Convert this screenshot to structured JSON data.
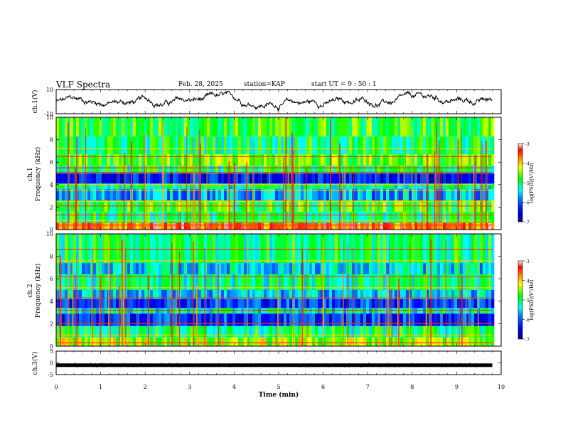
{
  "header": {
    "title": "VLF Spectra",
    "date": "Feb. 28, 2025",
    "station": "station=KAP",
    "start": "start  UT =   9 : 50 : 1"
  },
  "chart_data": [
    {
      "type": "line",
      "panel": "ch1-waveform",
      "ylabel": "ch.1(V)",
      "ylim": [
        -10,
        10
      ],
      "yticks": [
        "10",
        "-10"
      ],
      "xlim": [
        0,
        10
      ],
      "description_values": "noisy waveform oscillating roughly between -8 and +8 V over 0-9.8 min"
    },
    {
      "type": "heatmap",
      "panel": "ch1-spectrogram",
      "channel_label": "ch.1",
      "ylabel": "Frequency (kHz)",
      "ylim": [
        0,
        10
      ],
      "yticks": [
        "0",
        "2",
        "4",
        "6",
        "8",
        "10"
      ],
      "xlim": [
        0,
        10
      ],
      "data_end_min": 9.8,
      "colorbar": {
        "label": "log(PSD)(V²/Hz)",
        "range": [
          -7,
          -3
        ],
        "ticks": [
          "-3",
          "-4",
          "-5",
          "-6",
          "-7"
        ]
      },
      "bands": [
        {
          "f0": 0.0,
          "f1": 0.6,
          "level": -3.6
        },
        {
          "f0": 0.6,
          "f1": 1.6,
          "level": -5.0
        },
        {
          "f0": 1.6,
          "f1": 2.6,
          "level": -4.8
        },
        {
          "f0": 2.6,
          "f1": 3.6,
          "level": -5.7
        },
        {
          "f0": 3.6,
          "f1": 4.1,
          "level": -5.2
        },
        {
          "f0": 4.1,
          "f1": 5.0,
          "level": -6.4
        },
        {
          "f0": 5.0,
          "f1": 5.7,
          "level": -5.0
        },
        {
          "f0": 5.7,
          "f1": 6.7,
          "level": -4.6
        },
        {
          "f0": 6.7,
          "f1": 8.3,
          "level": -5.0
        },
        {
          "f0": 8.3,
          "f1": 10.0,
          "level": -4.8
        }
      ],
      "lines_khz": [
        0.4,
        0.8,
        1.3,
        2.1,
        2.5,
        3.5,
        4.0,
        5.1,
        5.5,
        6.5,
        7.2
      ]
    },
    {
      "type": "heatmap",
      "panel": "ch2-spectrogram",
      "channel_label": "ch.2",
      "ylabel": "Frequency (kHz)",
      "ylim": [
        0,
        10
      ],
      "yticks": [
        "0",
        "2",
        "4",
        "6",
        "8",
        "10"
      ],
      "xlim": [
        0,
        10
      ],
      "data_end_min": 9.8,
      "colorbar": {
        "label": "log(PSD)(V²/Hz)",
        "range": [
          -7,
          -3
        ],
        "ticks": [
          "-3",
          "-4",
          "-5",
          "-6",
          "-7"
        ]
      },
      "bands": [
        {
          "f0": 0.0,
          "f1": 0.8,
          "level": -4.4
        },
        {
          "f0": 0.8,
          "f1": 1.8,
          "level": -5.0
        },
        {
          "f0": 1.8,
          "f1": 2.9,
          "level": -6.2
        },
        {
          "f0": 2.9,
          "f1": 3.4,
          "level": -5.3
        },
        {
          "f0": 3.4,
          "f1": 4.2,
          "level": -6.1
        },
        {
          "f0": 4.2,
          "f1": 5.0,
          "level": -5.6
        },
        {
          "f0": 5.0,
          "f1": 6.4,
          "level": -5.1
        },
        {
          "f0": 6.4,
          "f1": 7.4,
          "level": -5.5
        },
        {
          "f0": 7.4,
          "f1": 10.0,
          "level": -5.0
        }
      ],
      "lines_khz": [
        0.3,
        1.0,
        2.0,
        3.2,
        4.3,
        5.2,
        6.2,
        7.6,
        8.6
      ]
    },
    {
      "type": "line",
      "panel": "ch3-waveform",
      "ylabel": "ch.3(V)",
      "ylim": [
        -5,
        5
      ],
      "yticks": [
        "5",
        "0",
        "-5"
      ],
      "xlim": [
        0,
        10
      ],
      "description_values": "near-constant level around -1 V with small jitter, 0-9.8 min"
    }
  ],
  "xaxis": {
    "label": "Time  (min)",
    "ticks": [
      "0",
      "1",
      "2",
      "3",
      "4",
      "5",
      "6",
      "7",
      "8",
      "9",
      "10"
    ]
  }
}
